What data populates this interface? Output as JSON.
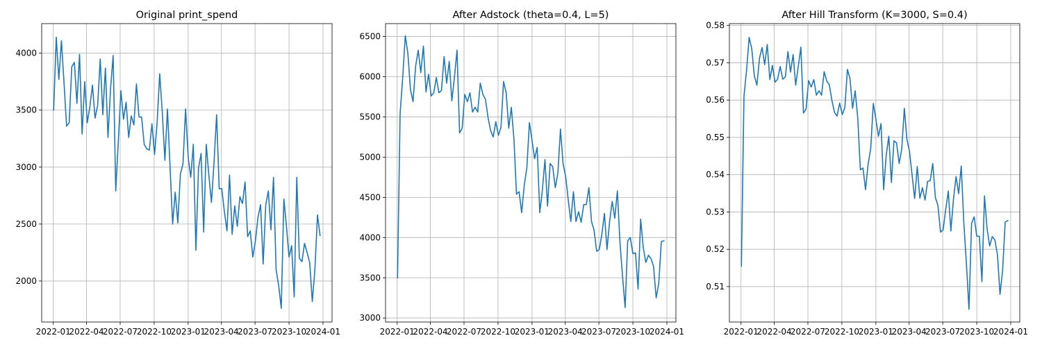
{
  "colors": {
    "series": "#1f77b4",
    "grid": "#b0b0b0"
  },
  "chart_data": [
    {
      "type": "line",
      "title": "Original print_spend",
      "x_ticks": [
        "2022-01",
        "2022-04",
        "2022-07",
        "2022-10",
        "2023-01",
        "2023-04",
        "2023-07",
        "2023-10",
        "2024-01"
      ],
      "x_start": "2022-01-02",
      "x_interval_days": 7,
      "y_ticks": [
        2000,
        2500,
        3000,
        3500,
        4000
      ],
      "ylim": [
        1640,
        4260
      ],
      "grid": true,
      "series": [
        {
          "values": [
            3500,
            4140,
            3770,
            4110,
            3740,
            3360,
            3390,
            3880,
            3920,
            3560,
            3990,
            3290,
            3750,
            3390,
            3530,
            3720,
            3430,
            3540,
            3950,
            3460,
            3870,
            3260,
            3690,
            3980,
            2790,
            3230,
            3670,
            3420,
            3570,
            3260,
            3450,
            3370,
            3730,
            3440,
            3440,
            3200,
            3160,
            3150,
            3380,
            3110,
            3390,
            3820,
            3480,
            3060,
            3510,
            3000,
            2500,
            2780,
            2510,
            2940,
            3030,
            3510,
            3090,
            2910,
            3200,
            2270,
            2990,
            3120,
            2430,
            3200,
            2930,
            2690,
            3040,
            3460,
            2810,
            2810,
            2610,
            2440,
            2930,
            2410,
            2660,
            2480,
            2740,
            2680,
            2870,
            2390,
            2440,
            2210,
            2350,
            2560,
            2670,
            2150,
            2670,
            2790,
            2450,
            2910,
            2100,
            1960,
            1760,
            2720,
            2480,
            2210,
            2310,
            1860,
            2910,
            2200,
            2170,
            2330,
            2250,
            2160,
            1820,
            2100,
            2580,
            2400
          ]
        }
      ]
    },
    {
      "type": "line",
      "title": "After Adstock (theta=0.4, L=5)",
      "x_ticks": [
        "2022-01",
        "2022-04",
        "2022-07",
        "2022-10",
        "2023-01",
        "2023-04",
        "2023-07",
        "2023-10",
        "2024-01"
      ],
      "x_start": "2022-01-02",
      "x_interval_days": 7,
      "y_ticks": [
        3000,
        3500,
        4000,
        4500,
        5000,
        5500,
        6000,
        6500
      ],
      "ylim": [
        2950,
        6660
      ],
      "grid": true,
      "series": [
        {
          "values": [
            3500,
            5540,
            5990,
            6510,
            6290,
            5840,
            5690,
            6130,
            6330,
            6050,
            6380,
            5810,
            6030,
            5760,
            5800,
            5990,
            5800,
            5830,
            6250,
            5920,
            6190,
            5700,
            5990,
            6330,
            5300,
            5360,
            5780,
            5690,
            5800,
            5560,
            5620,
            5560,
            5920,
            5780,
            5720,
            5490,
            5330,
            5250,
            5440,
            5270,
            5370,
            5940,
            5800,
            5360,
            5620,
            5230,
            4540,
            4570,
            4310,
            4650,
            4870,
            5430,
            5210,
            4980,
            5120,
            4310,
            4590,
            4970,
            4390,
            4920,
            4880,
            4620,
            4800,
            5350,
            4920,
            4760,
            4470,
            4200,
            4570,
            4200,
            4320,
            4190,
            4410,
            4410,
            4620,
            4200,
            4090,
            3830,
            3850,
            4040,
            4300,
            3850,
            4200,
            4450,
            4240,
            4580,
            3940,
            3520,
            3130,
            3960,
            4000,
            3800,
            3810,
            3360,
            4230,
            3880,
            3690,
            3780,
            3740,
            3640,
            3250,
            3430,
            3950,
            3960
          ]
        }
      ]
    },
    {
      "type": "line",
      "title": "After Hill Transform (K=3000, S=0.4)",
      "x_ticks": [
        "2022-01",
        "2022-04",
        "2022-07",
        "2022-10",
        "2023-01",
        "2023-04",
        "2023-07",
        "2023-10",
        "2024-01"
      ],
      "x_start": "2022-01-02",
      "x_interval_days": 7,
      "y_ticks": [
        0.51,
        0.52,
        0.53,
        0.54,
        0.55,
        0.56,
        0.57,
        0.58
      ],
      "ylim": [
        0.5005,
        0.5805
      ],
      "grid": true,
      "series": [
        {
          "values": [
            0.5155,
            0.561,
            0.568,
            0.5768,
            0.5738,
            0.5665,
            0.564,
            0.5712,
            0.5741,
            0.5695,
            0.5749,
            0.5655,
            0.5693,
            0.5648,
            0.5656,
            0.569,
            0.5656,
            0.5662,
            0.573,
            0.5675,
            0.5722,
            0.564,
            0.569,
            0.5742,
            0.5565,
            0.5576,
            0.5652,
            0.5635,
            0.5655,
            0.5613,
            0.5625,
            0.5613,
            0.5676,
            0.5651,
            0.5641,
            0.5599,
            0.5567,
            0.5557,
            0.5592,
            0.5561,
            0.558,
            0.5682,
            0.5657,
            0.5578,
            0.5625,
            0.5551,
            0.5413,
            0.5418,
            0.536,
            0.5428,
            0.547,
            0.5591,
            0.5549,
            0.5503,
            0.5537,
            0.536,
            0.5452,
            0.5503,
            0.5379,
            0.5491,
            0.5485,
            0.543,
            0.5469,
            0.5578,
            0.5495,
            0.5462,
            0.5399,
            0.5336,
            0.5422,
            0.5337,
            0.5365,
            0.5332,
            0.5382,
            0.5384,
            0.543,
            0.5339,
            0.5317,
            0.5246,
            0.5252,
            0.5307,
            0.5356,
            0.5249,
            0.5335,
            0.5395,
            0.5349,
            0.5423,
            0.5272,
            0.5162,
            0.5039,
            0.527,
            0.5287,
            0.5235,
            0.5235,
            0.5113,
            0.5343,
            0.5255,
            0.5209,
            0.5234,
            0.5225,
            0.5186,
            0.5079,
            0.5143,
            0.5273,
            0.5277
          ]
        }
      ]
    }
  ]
}
